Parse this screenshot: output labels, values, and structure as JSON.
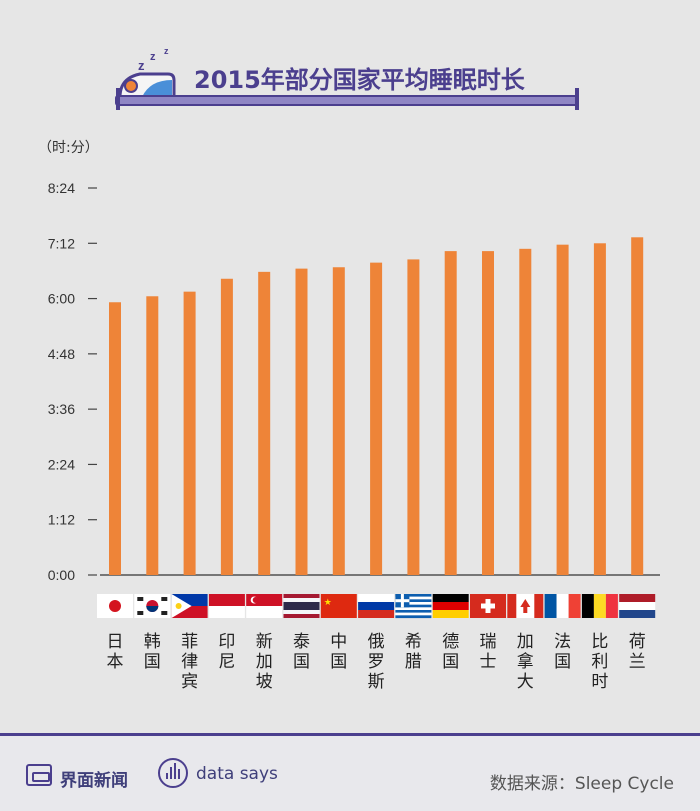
{
  "title": "2015年部分国家平均睡眠时长",
  "unit_label": "（时:分）",
  "colors": {
    "bar": "#ee8438",
    "accent": "#4b3f8e",
    "axis": "#333333"
  },
  "chart_data": {
    "type": "bar",
    "title": "2015年部分国家平均睡眠时长",
    "ylabel": "（时:分）",
    "y_ticks": [
      "0:00",
      "1:12",
      "2:24",
      "3:36",
      "4:48",
      "6:00",
      "7:12",
      "8:24"
    ],
    "y_ticks_hours": [
      0,
      1.2,
      2.4,
      3.6,
      4.8,
      6.0,
      7.2,
      8.4
    ],
    "ylim": [
      0,
      8.4
    ],
    "categories": [
      "日本",
      "韩国",
      "菲律宾",
      "印尼",
      "新加坡",
      "泰国",
      "中国",
      "俄罗斯",
      "希腊",
      "德国",
      "瑞士",
      "加拿大",
      "法国",
      "比利时",
      "荷兰"
    ],
    "values_hours": [
      5.92,
      6.05,
      6.15,
      6.43,
      6.58,
      6.65,
      6.68,
      6.78,
      6.85,
      7.03,
      7.03,
      7.08,
      7.17,
      7.2,
      7.33
    ],
    "flags": [
      "japan-flag",
      "korea-flag",
      "philippines-flag",
      "indonesia-flag",
      "singapore-flag",
      "thailand-flag",
      "china-flag",
      "russia-flag",
      "greece-flag",
      "germany-flag",
      "switzerland-flag",
      "canada-flag",
      "france-flag",
      "belgium-flag",
      "netherlands-flag"
    ]
  },
  "footer": {
    "brand": "界面新闻",
    "brand_icon": "jiemian-logo-icon",
    "data_says": "data says",
    "data_says_icon": "soundwave-icon",
    "source": "数据来源：Sleep Cycle"
  }
}
